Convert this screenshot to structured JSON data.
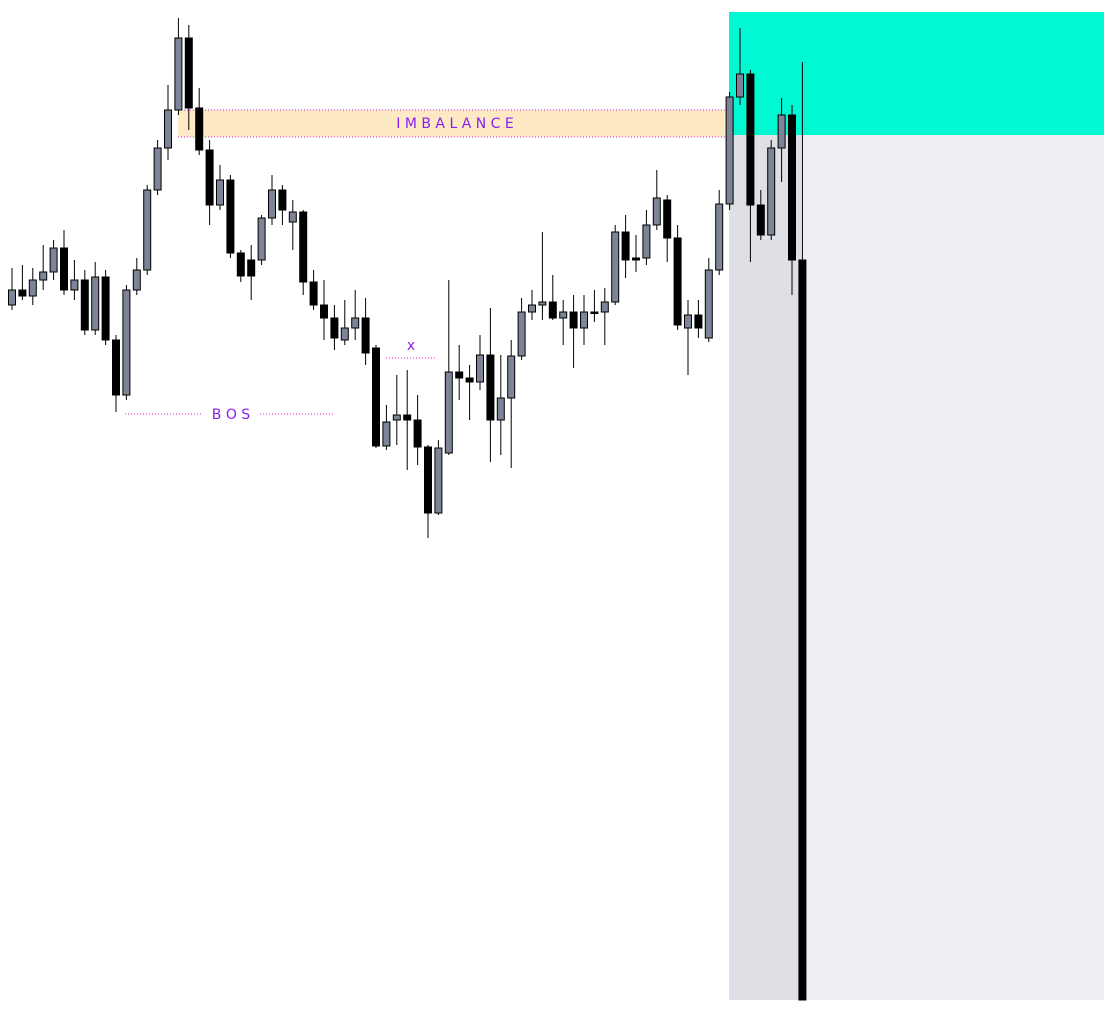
{
  "chart_data": {
    "type": "candlestick",
    "open": [
      695,
      710,
      704,
      720,
      728,
      752,
      710,
      720,
      670,
      723,
      660,
      605,
      710,
      730,
      810,
      852,
      890,
      962,
      892,
      850,
      795,
      820,
      747,
      740,
      740,
      782,
      810,
      778,
      788,
      718,
      695,
      682,
      660,
      672,
      682,
      652,
      554,
      580,
      585,
      580,
      553,
      487,
      547,
      628,
      622,
      618,
      645,
      580,
      602,
      644,
      688,
      695,
      698,
      682,
      688,
      672,
      688,
      688,
      698,
      768,
      742,
      742,
      775,
      800,
      762,
      672,
      685,
      662,
      730,
      796,
      903,
      926,
      795,
      765,
      852,
      885,
      740
    ],
    "high": [
      732,
      735,
      732,
      755,
      760,
      770,
      740,
      730,
      738,
      730,
      665,
      715,
      742,
      815,
      860,
      915,
      982,
      975,
      912,
      860,
      835,
      825,
      750,
      755,
      785,
      825,
      815,
      800,
      790,
      730,
      720,
      695,
      700,
      710,
      702,
      655,
      595,
      625,
      630,
      605,
      555,
      560,
      720,
      655,
      635,
      665,
      692,
      645,
      660,
      702,
      710,
      768,
      725,
      700,
      705,
      705,
      710,
      712,
      775,
      785,
      765,
      790,
      830,
      805,
      775,
      700,
      700,
      742,
      810,
      908,
      972,
      930,
      810,
      860,
      902,
      895,
      938
    ],
    "low": [
      690,
      700,
      695,
      710,
      720,
      705,
      700,
      665,
      665,
      655,
      588,
      600,
      705,
      725,
      805,
      840,
      885,
      870,
      845,
      775,
      790,
      742,
      718,
      700,
      735,
      775,
      775,
      750,
      705,
      690,
      660,
      650,
      655,
      660,
      635,
      552,
      550,
      555,
      530,
      535,
      462,
      485,
      545,
      600,
      580,
      610,
      538,
      545,
      532,
      640,
      680,
      680,
      680,
      655,
      632,
      655,
      678,
      655,
      695,
      722,
      728,
      735,
      770,
      738,
      670,
      625,
      662,
      658,
      725,
      790,
      895,
      738,
      760,
      760,
      818,
      705,
      0
    ],
    "close": [
      710,
      704,
      720,
      728,
      752,
      710,
      720,
      670,
      723,
      660,
      605,
      710,
      730,
      810,
      852,
      890,
      962,
      892,
      850,
      795,
      820,
      747,
      724,
      724,
      782,
      810,
      790,
      788,
      718,
      695,
      682,
      662,
      672,
      682,
      647,
      554,
      578,
      585,
      580,
      553,
      487,
      552,
      628,
      622,
      618,
      645,
      580,
      602,
      644,
      688,
      695,
      698,
      682,
      688,
      672,
      688,
      687,
      698,
      768,
      740,
      740,
      775,
      802,
      762,
      675,
      685,
      672,
      730,
      796,
      903,
      926,
      795,
      765,
      852,
      885,
      740,
      0
    ],
    "up_color": "#7d8497",
    "down_color": "#000000",
    "ylim": [
      0,
      1000
    ],
    "annotations": {
      "imbalance": "I M B A L A N C E",
      "bos": "B O S",
      "x": "x"
    },
    "annotation_color": "#8a1ef0",
    "zone_colors": {
      "supply": "#00f9d2",
      "shade": "#dfe0e5",
      "future": "#eeeff2"
    }
  }
}
